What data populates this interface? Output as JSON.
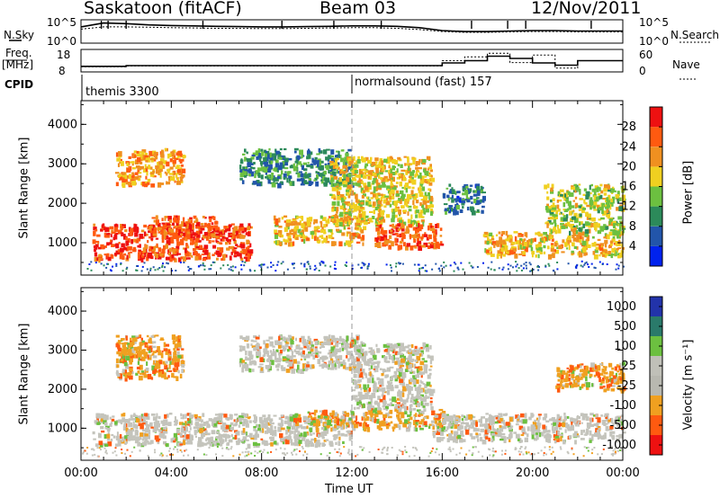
{
  "header": {
    "station": "Saskatoon (fitACF)",
    "beam": "Beam 03",
    "date": "12/Nov/2011"
  },
  "top_panel_labels": {
    "nsky": "N.Sky",
    "freq_line1": "Freq.",
    "freq_line2": "[MHz]",
    "cpid": "CPID",
    "nsearch": "N.Search",
    "nave": "Nave",
    "nsky_top": "10^5",
    "nsky_bottom": "10^0",
    "nsearch_top": "10^5",
    "nsearch_bottom": "10^0",
    "freq_top": "18",
    "freq_bottom": "8",
    "nave_top": "60",
    "nave_bottom": "0"
  },
  "cpid_entries": [
    "themis 3300",
    "normalsound (fast) 157"
  ],
  "colors": {
    "power": [
      "#0022ee",
      "#2255aa",
      "#2c8a5a",
      "#6cc040",
      "#f0d020",
      "#f09020",
      "#ff5a10",
      "#ee1111"
    ],
    "velocity": [
      "#ee1111",
      "#ff5a10",
      "#f0a020",
      "#b8b8b0",
      "#c0c0b8",
      "#6cc040",
      "#2a7a6a",
      "#2233aa"
    ]
  },
  "chart_data": [
    {
      "type": "line",
      "title": "N.Sky / N.Search",
      "x": [
        "00:00",
        "01:00",
        "02:00",
        "03:00",
        "04:00",
        "05:00",
        "06:00",
        "07:00",
        "08:00",
        "09:00",
        "10:00",
        "11:00",
        "12:00",
        "13:00",
        "14:00",
        "15:00",
        "16:00",
        "17:00",
        "18:00",
        "19:00",
        "20:00",
        "21:00",
        "22:00",
        "23:00",
        "24:00"
      ],
      "series": [
        {
          "name": "N.Sky",
          "values": [
            3000,
            20000,
            15000,
            8000,
            6000,
            5000,
            4000,
            3500,
            3000,
            3000,
            3500,
            4000,
            5000,
            5000,
            4000,
            2000,
            500,
            300,
            300,
            400,
            500,
            500,
            400,
            400,
            400
          ]
        },
        {
          "name": "N.Search",
          "values": [
            1000,
            3000,
            3000,
            2500,
            2000,
            1800,
            1500,
            1400,
            1300,
            1300,
            1500,
            1800,
            2000,
            2000,
            1500,
            800,
            300,
            200,
            200,
            250,
            300,
            300,
            250,
            250,
            250
          ]
        }
      ],
      "ylim": [
        "10^0",
        "10^5"
      ]
    },
    {
      "type": "line",
      "title": "Freq. / Nave",
      "x": [
        "00:00",
        "02:00",
        "04:00",
        "06:00",
        "08:00",
        "10:00",
        "12:00",
        "14:00",
        "15:00",
        "16:00",
        "17:00",
        "18:00",
        "19:00",
        "20:00",
        "21:00",
        "22:00",
        "24:00"
      ],
      "series": [
        {
          "name": "Freq.",
          "values": [
            10.5,
            10.8,
            10.8,
            10.8,
            10.8,
            10.8,
            10.8,
            10.8,
            10.8,
            12,
            13,
            15,
            14,
            12,
            11,
            13,
            13
          ]
        },
        {
          "name": "Nave",
          "values": [
            14,
            16,
            16,
            16,
            16,
            16,
            16,
            16,
            16,
            30,
            40,
            50,
            25,
            45,
            10,
            30,
            30
          ]
        }
      ],
      "ylim_freq": [
        8,
        18
      ],
      "ylim_nave": [
        0,
        60
      ]
    },
    {
      "type": "heatmap",
      "title": "Power",
      "xlabel": "",
      "ylabel": "Slant Range [km]",
      "x_ticks": [
        "00:00",
        "04:00",
        "08:00",
        "12:00",
        "16:00",
        "20:00",
        "00:00"
      ],
      "y_ticks": [
        1000,
        2000,
        3000,
        4000
      ],
      "ylim": [
        180,
        4600
      ],
      "xlim_hours": [
        0,
        24
      ],
      "colorbar_label": "Power [dB]",
      "colorbar_ticks": [
        4,
        8,
        12,
        16,
        20,
        24,
        28
      ],
      "colorbar_range": [
        0,
        32
      ],
      "regions": [
        {
          "t": [
            0.5,
            7.5
          ],
          "r": [
            600,
            1500
          ],
          "level": 27
        },
        {
          "t": [
            1.5,
            4.5
          ],
          "r": [
            2500,
            3400
          ],
          "level": 22
        },
        {
          "t": [
            3.0,
            6.0
          ],
          "r": [
            1200,
            1700
          ],
          "level": 26
        },
        {
          "t": [
            7.0,
            12.0
          ],
          "r": [
            2500,
            3400
          ],
          "level": 10
        },
        {
          "t": [
            8.5,
            12.5
          ],
          "r": [
            1000,
            1700
          ],
          "level": 20
        },
        {
          "t": [
            11.0,
            15.5
          ],
          "r": [
            1500,
            3200
          ],
          "level": 18
        },
        {
          "t": [
            13.0,
            16.0
          ],
          "r": [
            900,
            1500
          ],
          "level": 26
        },
        {
          "t": [
            16.0,
            17.8
          ],
          "r": [
            1800,
            2500
          ],
          "level": 8
        },
        {
          "t": [
            17.8,
            24.0
          ],
          "r": [
            700,
            1300
          ],
          "level": 20
        },
        {
          "t": [
            20.5,
            24.0
          ],
          "r": [
            1300,
            2500
          ],
          "level": 16
        }
      ]
    },
    {
      "type": "heatmap",
      "title": "Velocity",
      "xlabel": "Time UT",
      "ylabel": "Slant Range [km]",
      "x_ticks": [
        "00:00",
        "04:00",
        "08:00",
        "12:00",
        "16:00",
        "20:00",
        "00:00"
      ],
      "y_ticks": [
        1000,
        2000,
        3000,
        4000
      ],
      "ylim": [
        180,
        4600
      ],
      "xlim_hours": [
        0,
        24
      ],
      "colorbar_label": "Velocity [m s⁻¹]",
      "colorbar_ticks": [
        1000,
        500,
        100,
        25,
        -25,
        -100,
        -500,
        -1000
      ],
      "regions": [
        {
          "t": [
            0.5,
            12.0
          ],
          "r": [
            600,
            1400
          ],
          "level": 0
        },
        {
          "t": [
            1.5,
            4.5
          ],
          "r": [
            2300,
            3400
          ],
          "level": -300
        },
        {
          "t": [
            7.0,
            12.5
          ],
          "r": [
            2500,
            3400
          ],
          "level": 0
        },
        {
          "t": [
            12.0,
            15.5
          ],
          "r": [
            1500,
            3200
          ],
          "level": 0
        },
        {
          "t": [
            10.0,
            16.0
          ],
          "r": [
            1000,
            1500
          ],
          "level": -200
        },
        {
          "t": [
            15.5,
            24.0
          ],
          "r": [
            700,
            1400
          ],
          "level": 0
        },
        {
          "t": [
            21.0,
            24.0
          ],
          "r": [
            2000,
            2700
          ],
          "level": -300
        }
      ]
    }
  ]
}
